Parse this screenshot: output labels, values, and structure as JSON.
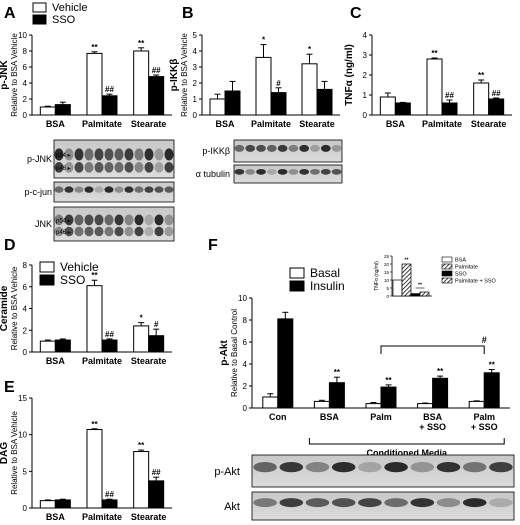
{
  "chart_data": [
    {
      "panel": "A",
      "type": "bar",
      "ylabel": "p-JNK",
      "ylabel2": "Relative to BSA Vehicle",
      "ylim": [
        0,
        10
      ],
      "yticks": [
        0,
        2,
        4,
        6,
        8,
        10
      ],
      "groups": [
        "BSA",
        "Palmitate",
        "Stearate"
      ],
      "series": [
        {
          "name": "Vehicle",
          "values": [
            1.0,
            7.7,
            8.0
          ],
          "err": [
            0.1,
            0.2,
            0.4
          ],
          "marks": [
            "",
            "**",
            "**"
          ]
        },
        {
          "name": "SSO",
          "values": [
            1.3,
            2.4,
            4.8
          ],
          "err": [
            0.3,
            0.2,
            0.2
          ],
          "marks": [
            "",
            "##",
            "##"
          ]
        }
      ],
      "legend": [
        "Vehicle",
        "SSO"
      ],
      "blots": [
        {
          "label": "p-JNK",
          "bands": 12,
          "markers": [
            "p54",
            "p46"
          ]
        },
        {
          "label": "p-c-jun",
          "bands": 12,
          "markers": []
        },
        {
          "label": "JNK",
          "bands": 12,
          "markers": [
            "p54",
            "p46"
          ]
        }
      ]
    },
    {
      "panel": "B",
      "type": "bar",
      "ylabel": "p-IKKβ",
      "ylabel2": "Relative to BSA Vehicle",
      "ylim": [
        0,
        5
      ],
      "yticks": [
        0,
        1,
        2,
        3,
        4,
        5
      ],
      "groups": [
        "BSA",
        "Palmitate",
        "Stearate"
      ],
      "series": [
        {
          "name": "Vehicle",
          "values": [
            1.0,
            3.6,
            3.2
          ],
          "err": [
            0.3,
            0.8,
            0.6
          ],
          "marks": [
            "",
            "*",
            "*"
          ]
        },
        {
          "name": "SSO",
          "values": [
            1.5,
            1.4,
            1.6
          ],
          "err": [
            0.6,
            0.3,
            0.5
          ],
          "marks": [
            "",
            "#",
            ""
          ]
        }
      ],
      "blots": [
        {
          "label": "p-IKKβ",
          "bands": 10,
          "markers": []
        },
        {
          "label": "α tubulin",
          "bands": 10,
          "markers": []
        }
      ]
    },
    {
      "panel": "C",
      "type": "bar",
      "ylabel": "TNFα (ng/ml)",
      "ylim": [
        0,
        4
      ],
      "yticks": [
        0,
        1,
        2,
        3,
        4
      ],
      "groups": [
        "BSA",
        "Palmitate",
        "Stearate"
      ],
      "series": [
        {
          "name": "Vehicle",
          "values": [
            0.9,
            2.8,
            1.6
          ],
          "err": [
            0.2,
            0.05,
            0.15
          ],
          "marks": [
            "",
            "**",
            "**"
          ]
        },
        {
          "name": "SSO",
          "values": [
            0.6,
            0.6,
            0.8
          ],
          "err": [
            0.03,
            0.15,
            0.05
          ],
          "marks": [
            "",
            "##",
            "##"
          ]
        }
      ]
    },
    {
      "panel": "D",
      "type": "bar",
      "ylabel": "Ceramide",
      "ylabel2": "Relative to BSA Vehicle",
      "ylim": [
        0,
        8
      ],
      "yticks": [
        0,
        2,
        4,
        6,
        8
      ],
      "groups": [
        "BSA",
        "Palmitate",
        "Stearate"
      ],
      "series": [
        {
          "name": "Vehicle",
          "values": [
            1.0,
            6.1,
            2.4
          ],
          "err": [
            0.1,
            0.5,
            0.3
          ],
          "marks": [
            "",
            "**",
            "*"
          ]
        },
        {
          "name": "SSO",
          "values": [
            1.1,
            1.1,
            1.5
          ],
          "err": [
            0.1,
            0.1,
            0.6
          ],
          "marks": [
            "",
            "##",
            "#"
          ]
        }
      ],
      "legend": [
        "Vehicle",
        "SSO"
      ]
    },
    {
      "panel": "E",
      "type": "bar",
      "ylabel": "DAG",
      "ylabel2": "Relative to BSA Vehicle",
      "ylim": [
        0,
        15
      ],
      "yticks": [
        0,
        5,
        10,
        15
      ],
      "groups": [
        "BSA",
        "Palmitate",
        "Stearate"
      ],
      "series": [
        {
          "name": "Vehicle",
          "values": [
            1.0,
            10.7,
            7.7
          ],
          "err": [
            0.1,
            0.1,
            0.2
          ],
          "marks": [
            "",
            "**",
            "**"
          ]
        },
        {
          "name": "SSO",
          "values": [
            1.1,
            1.1,
            3.7
          ],
          "err": [
            0.1,
            0.1,
            0.5
          ],
          "marks": [
            "",
            "##",
            "##"
          ]
        }
      ]
    },
    {
      "panel": "F",
      "type": "bar",
      "ylabel": "p-Akt",
      "ylabel2": "Relative to Basal Control",
      "ylim": [
        0,
        10
      ],
      "yticks": [
        0,
        2,
        4,
        6,
        8,
        10
      ],
      "groups": [
        "Con",
        "BSA",
        "Palm",
        "BSA\n+ SSO",
        "Palm\n+ SSO"
      ],
      "series": [
        {
          "name": "Basal",
          "values": [
            1.0,
            0.6,
            0.4,
            0.4,
            0.6
          ],
          "err": [
            0.3,
            0.1,
            0.1,
            0.05,
            0.05
          ],
          "marks": [
            "",
            "",
            "",
            "",
            ""
          ]
        },
        {
          "name": "Insulin",
          "values": [
            8.1,
            2.3,
            1.9,
            2.7,
            3.2
          ],
          "err": [
            0.6,
            0.5,
            0.2,
            0.2,
            0.3
          ],
          "marks": [
            "",
            "**",
            "**",
            "**",
            "**"
          ]
        }
      ],
      "legend": [
        "Basal",
        "Insulin"
      ],
      "bracket_mark": "#",
      "conditioned_media_label": "Conditioned Media",
      "blots": [
        {
          "label": "p-Akt",
          "bands": 10,
          "markers": []
        },
        {
          "label": "Akt",
          "bands": 10,
          "markers": []
        }
      ],
      "inset": {
        "ylabel": "TNFα (ng/ml)",
        "ylim": [
          0,
          25
        ],
        "yticks": [
          0,
          5,
          10,
          15,
          20,
          25
        ],
        "bars": [
          {
            "name": "BSA",
            "value": 10,
            "fill": "white"
          },
          {
            "name": "Palmitate",
            "value": 20,
            "fill": "hatch"
          },
          {
            "name": "SSO",
            "value": 1.5,
            "fill": "black"
          },
          {
            "name": "Palmitate + SSO",
            "value": 2.5,
            "fill": "hatch"
          }
        ],
        "marks": [
          "**",
          "**"
        ]
      }
    }
  ]
}
